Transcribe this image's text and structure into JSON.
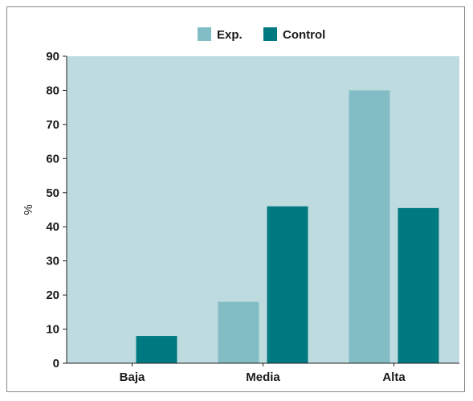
{
  "chart_data": {
    "type": "bar",
    "title": "",
    "xlabel": "",
    "ylabel": "%",
    "ylim": [
      0,
      90
    ],
    "yticks": [
      0,
      10,
      20,
      30,
      40,
      50,
      60,
      70,
      80,
      90
    ],
    "categories": [
      "Baja",
      "Media",
      "Alta"
    ],
    "series": [
      {
        "name": "Exp.",
        "color": "#82bcc4",
        "values": [
          0,
          18,
          80
        ]
      },
      {
        "name": "Control",
        "color": "#007a80",
        "values": [
          8,
          46,
          45.5
        ]
      }
    ],
    "plot_background": "#bedbdf",
    "legend_position": "top-center",
    "grid": false
  }
}
